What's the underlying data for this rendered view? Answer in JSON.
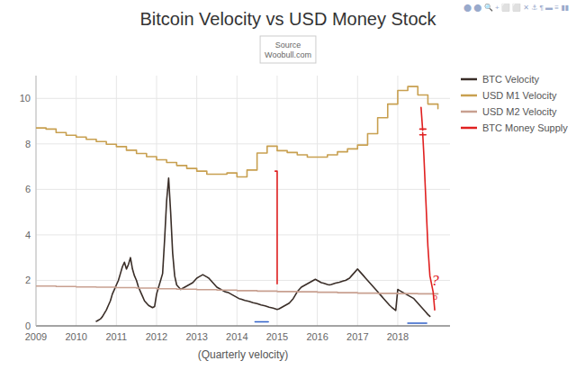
{
  "chart_data": {
    "type": "line",
    "title": "Bitcoin Velocity vs USD Money Stock",
    "subtitle": "Source\nWoobull.com",
    "xlabel": "(Quarterly velocity)",
    "xlim": [
      2009.0,
      2019.3
    ],
    "xticks": [
      2009,
      2010,
      2011,
      2012,
      2013,
      2014,
      2015,
      2016,
      2017,
      2018
    ],
    "ylim": [
      0,
      11
    ],
    "yticks": [
      0,
      2,
      4,
      6,
      8,
      10
    ],
    "grid": true,
    "legend": "upper right",
    "annotations": [
      {
        "text": "?",
        "x": 2018.93,
        "y": 2.0,
        "color": "#e02020"
      },
      {
        "text": "o",
        "x": 2018.93,
        "y": 1.3,
        "color": "#e02020"
      },
      {
        "text": "⬤ ⬤ 🔍 + ⬜ ⬜ ✕ ⚓ ¶ ▬ ≡ ▮▮",
        "color": "#99aacc"
      }
    ],
    "series": [
      {
        "name": "BTC Velocity",
        "type": "line",
        "color": "#3a2e28",
        "x": [
          2010.5,
          2010.55,
          2010.6,
          2010.65,
          2010.7,
          2010.75,
          2010.8,
          2010.85,
          2010.9,
          2010.95,
          2011.0,
          2011.05,
          2011.1,
          2011.15,
          2011.2,
          2011.25,
          2011.3,
          2011.35,
          2011.4,
          2011.45,
          2011.5,
          2011.55,
          2011.6,
          2011.65,
          2011.7,
          2011.75,
          2011.8,
          2011.85,
          2011.9,
          2011.95,
          2012.0,
          2012.05,
          2012.1,
          2012.15,
          2012.2,
          2012.25,
          2012.3,
          2012.35,
          2012.4,
          2012.45,
          2012.5,
          2012.55,
          2012.6,
          2012.65,
          2012.7,
          2012.75,
          2012.8,
          2012.85,
          2012.9,
          2012.95,
          2013.0,
          2013.05,
          2013.1,
          2013.15,
          2013.2,
          2013.25,
          2013.3,
          2013.35,
          2013.4,
          2013.45,
          2013.5,
          2013.55,
          2013.6,
          2013.65,
          2013.7,
          2013.75,
          2013.8,
          2013.85,
          2013.9,
          2013.95,
          2014.0,
          2014.05,
          2014.1,
          2014.15,
          2014.2,
          2014.25,
          2014.3,
          2014.35,
          2014.4,
          2014.45,
          2014.5,
          2014.55,
          2014.6,
          2014.65,
          2014.7,
          2014.75,
          2014.8,
          2014.85,
          2014.9,
          2014.95,
          2015.0,
          2015.05,
          2015.1,
          2015.15,
          2015.2,
          2015.25,
          2015.3,
          2015.35,
          2015.4,
          2015.45,
          2015.5,
          2015.55,
          2015.6,
          2015.65,
          2015.7,
          2015.75,
          2015.8,
          2015.85,
          2015.9,
          2015.95,
          2016.0,
          2016.05,
          2016.1,
          2016.15,
          2016.2,
          2016.25,
          2016.3,
          2016.35,
          2016.4,
          2016.45,
          2016.5,
          2016.55,
          2016.6,
          2016.65,
          2016.7,
          2016.75,
          2016.8,
          2016.85,
          2016.9,
          2016.95,
          2017.0,
          2017.05,
          2017.1,
          2017.15,
          2017.2,
          2017.25,
          2017.3,
          2017.35,
          2017.4,
          2017.45,
          2017.5,
          2017.55,
          2017.6,
          2017.65,
          2017.7,
          2017.75,
          2017.8,
          2017.85,
          2017.9,
          2017.95,
          2018.0,
          2018.05,
          2018.1,
          2018.15,
          2018.2,
          2018.25,
          2018.3,
          2018.35,
          2018.4,
          2018.45,
          2018.5,
          2018.55,
          2018.6,
          2018.65,
          2018.7,
          2018.75,
          2018.8
        ],
        "values": [
          0.2,
          0.25,
          0.3,
          0.4,
          0.55,
          0.7,
          0.9,
          1.1,
          1.4,
          1.6,
          1.8,
          2.0,
          2.3,
          2.6,
          2.8,
          2.5,
          2.7,
          3.0,
          2.5,
          2.2,
          2.0,
          1.7,
          1.5,
          1.3,
          1.1,
          1.0,
          0.9,
          0.85,
          0.8,
          0.85,
          1.4,
          1.7,
          2.0,
          2.3,
          3.8,
          5.5,
          6.5,
          5.0,
          3.2,
          2.2,
          1.8,
          1.7,
          1.6,
          1.65,
          1.7,
          1.75,
          1.8,
          1.85,
          1.9,
          2.0,
          2.1,
          2.15,
          2.2,
          2.25,
          2.2,
          2.15,
          2.1,
          2.0,
          1.9,
          1.8,
          1.7,
          1.65,
          1.6,
          1.55,
          1.5,
          1.48,
          1.45,
          1.4,
          1.35,
          1.3,
          1.25,
          1.2,
          1.18,
          1.15,
          1.12,
          1.1,
          1.08,
          1.05,
          1.02,
          1.0,
          0.98,
          0.95,
          0.92,
          0.9,
          0.88,
          0.85,
          0.82,
          0.8,
          0.78,
          0.75,
          0.72,
          0.75,
          0.8,
          0.85,
          0.9,
          0.95,
          1.0,
          1.1,
          1.2,
          1.35,
          1.5,
          1.6,
          1.7,
          1.75,
          1.8,
          1.85,
          1.9,
          1.95,
          2.0,
          2.05,
          2.0,
          1.95,
          1.9,
          1.88,
          1.85,
          1.82,
          1.8,
          1.82,
          1.85,
          1.88,
          1.9,
          1.92,
          1.95,
          1.98,
          2.0,
          2.05,
          2.1,
          2.2,
          2.3,
          2.4,
          2.5,
          2.4,
          2.3,
          2.2,
          2.1,
          2.0,
          1.9,
          1.8,
          1.7,
          1.6,
          1.5,
          1.4,
          1.3,
          1.2,
          1.1,
          1.0,
          0.9,
          0.82,
          0.75,
          0.68,
          1.6,
          1.55,
          1.5,
          1.45,
          1.4,
          1.35,
          1.3,
          1.25,
          1.2,
          1.1,
          1.0,
          0.9,
          0.8,
          0.7,
          0.6,
          0.5,
          0.42
        ]
      },
      {
        "name": "USD M1 Velocity",
        "type": "step",
        "color": "#c8a050",
        "x": [
          2009.0,
          2009.25,
          2009.5,
          2009.75,
          2010.0,
          2010.25,
          2010.5,
          2010.75,
          2011.0,
          2011.25,
          2011.5,
          2011.75,
          2012.0,
          2012.25,
          2012.5,
          2012.75,
          2013.0,
          2013.25,
          2013.5,
          2013.75,
          2014.0,
          2014.25,
          2014.5,
          2014.75,
          2015.0,
          2015.25,
          2015.5,
          2015.75,
          2016.0,
          2016.25,
          2016.5,
          2016.75,
          2017.0,
          2017.25,
          2017.5,
          2017.75,
          2018.0,
          2018.25,
          2018.5,
          2018.75,
          2019.0
        ],
        "values": [
          8.7,
          8.65,
          8.5,
          8.38,
          8.3,
          8.2,
          8.1,
          7.98,
          7.88,
          7.72,
          7.58,
          7.44,
          7.3,
          7.18,
          7.05,
          6.92,
          6.8,
          6.67,
          6.67,
          6.72,
          6.55,
          6.85,
          7.6,
          7.9,
          7.7,
          7.62,
          7.52,
          7.42,
          7.42,
          7.52,
          7.65,
          7.78,
          7.95,
          8.45,
          9.15,
          9.75,
          10.35,
          10.52,
          10.15,
          9.75,
          9.55
        ]
      },
      {
        "name": "USD M2 Velocity",
        "type": "step",
        "color": "#c8a090",
        "x": [
          2009.0,
          2009.5,
          2010.0,
          2010.5,
          2011.0,
          2011.5,
          2012.0,
          2012.5,
          2013.0,
          2013.5,
          2014.0,
          2014.5,
          2015.0,
          2015.5,
          2016.0,
          2016.5,
          2017.0,
          2017.5,
          2018.0,
          2018.5,
          2019.0
        ],
        "values": [
          1.75,
          1.73,
          1.71,
          1.7,
          1.68,
          1.66,
          1.63,
          1.61,
          1.59,
          1.57,
          1.55,
          1.53,
          1.51,
          1.5,
          1.48,
          1.46,
          1.44,
          1.43,
          1.42,
          1.41,
          1.4
        ]
      },
      {
        "name": "BTC Money Supply",
        "type": "line",
        "color": "#e02020",
        "x": [
          2014.95,
          2015.0,
          2015.0,
          null,
          2018.55,
          2018.7,
          null,
          2018.55,
          2018.7,
          null,
          2018.62,
          2018.65,
          2018.7,
          2018.75,
          2018.8,
          2018.88,
          2018.92,
          null,
          2018.58,
          2018.62
        ],
        "values": [
          6.8,
          6.8,
          1.85,
          null,
          8.65,
          8.65,
          null,
          8.4,
          8.4,
          null,
          8.5,
          7.5,
          5.5,
          3.5,
          2.2,
          1.5,
          0.7,
          null,
          9.6,
          8.6
        ]
      },
      {
        "type": "line",
        "color": "#3060c8",
        "x": [
          2014.45,
          2014.78,
          null,
          2018.25,
          2018.72
        ],
        "values": [
          0.18,
          0.18,
          null,
          0.12,
          0.12
        ]
      }
    ]
  }
}
